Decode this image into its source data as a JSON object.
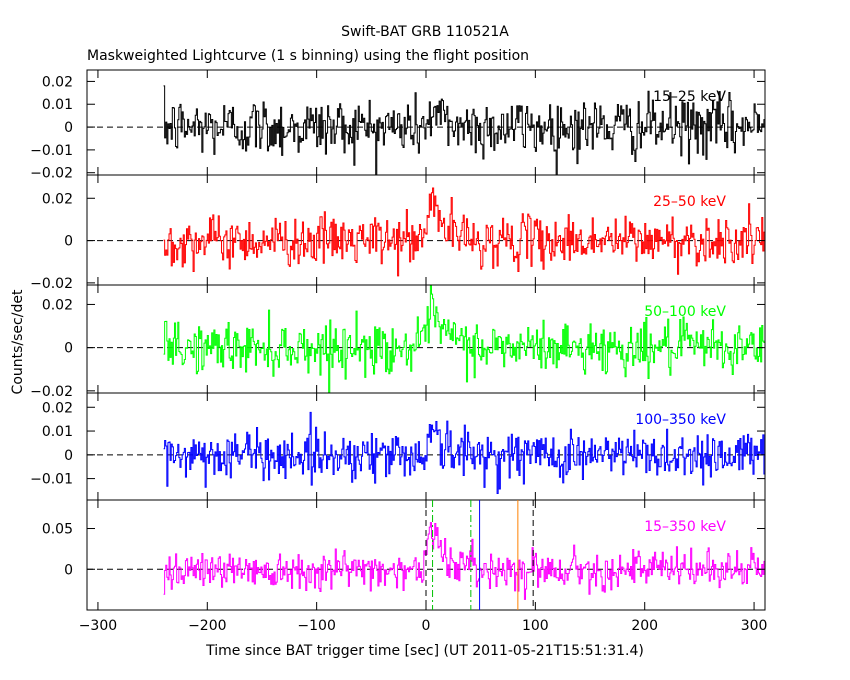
{
  "title": "Swift-BAT GRB 110521A",
  "subtitle": "Maskweighted Lightcurve (1 s binning) using the flight position",
  "ylabel": "Counts/sec/det",
  "xlabel": "Time since BAT trigger time [sec] (UT 2011-05-21T15:51:31.4)",
  "chart_data": {
    "type": "line",
    "title": "Swift-BAT GRB 110521A",
    "subtitle": "Maskweighted Lightcurve (1 s binning) using the flight position",
    "xlabel": "Time since BAT trigger time [sec] (UT 2011-05-21T15:51:31.4)",
    "ylabel": "Counts/sec/det",
    "xlim": [
      -310,
      310
    ],
    "x_ticks": [
      -300,
      -200,
      -100,
      0,
      100,
      200,
      300
    ],
    "x_tick_labels": [
      "−300",
      "−200",
      "−100",
      "0",
      "100",
      "200",
      "300"
    ],
    "data_range_x": [
      -240,
      310
    ],
    "binning_sec": 1,
    "panels": [
      {
        "name": "15–25 keV",
        "color": "#000000",
        "ylim": [
          -0.021,
          0.025
        ],
        "y_ticks": [
          -0.02,
          -0.01,
          0,
          0.01,
          0.02
        ],
        "y_tick_labels": [
          "−0.02",
          "−0.01",
          "0",
          "0.01",
          "0.02"
        ],
        "noise_sigma": 0.0065,
        "burst_peak": 0.006,
        "burst_decay": 15
      },
      {
        "name": "25–50 keV",
        "color": "#ff0000",
        "ylim": [
          -0.021,
          0.031
        ],
        "y_ticks": [
          -0.02,
          0,
          0.02
        ],
        "y_tick_labels": [
          "−0.02",
          "0",
          "0.02"
        ],
        "noise_sigma": 0.0058,
        "burst_peak": 0.022,
        "burst_decay": 12
      },
      {
        "name": "50–100 keV",
        "color": "#00ff00",
        "ylim": [
          -0.021,
          0.029
        ],
        "y_ticks": [
          -0.02,
          0,
          0.02
        ],
        "y_tick_labels": [
          "−0.02",
          "0",
          "0.02"
        ],
        "noise_sigma": 0.0058,
        "burst_peak": 0.018,
        "burst_decay": 14
      },
      {
        "name": "100–350 keV",
        "color": "#0000ff",
        "ylim": [
          -0.019,
          0.026
        ],
        "y_ticks": [
          -0.01,
          0,
          0.01,
          0.02
        ],
        "y_tick_labels": [
          "−0.01",
          "0",
          "0.01",
          "0.02"
        ],
        "noise_sigma": 0.0052,
        "burst_peak": 0.013,
        "burst_decay": 10
      },
      {
        "name": "15–350 keV",
        "color": "#ff00ff",
        "ylim": [
          -0.05,
          0.085
        ],
        "y_ticks": [
          0,
          0.05
        ],
        "y_tick_labels": [
          "0",
          "0.05"
        ],
        "noise_sigma": 0.0115,
        "burst_peak": 0.055,
        "burst_decay": 13
      }
    ],
    "markers": [
      {
        "x": 0,
        "style": "dashed",
        "color": "#000000"
      },
      {
        "x": 98,
        "style": "dashed",
        "color": "#000000"
      },
      {
        "x": 6,
        "style": "dash-dot",
        "color": "#00c000"
      },
      {
        "x": 41,
        "style": "dash-dot",
        "color": "#00c000"
      },
      {
        "x": 49,
        "style": "solid",
        "color": "#0000ff"
      },
      {
        "x": 84,
        "style": "solid",
        "color": "#ff8000"
      }
    ]
  }
}
